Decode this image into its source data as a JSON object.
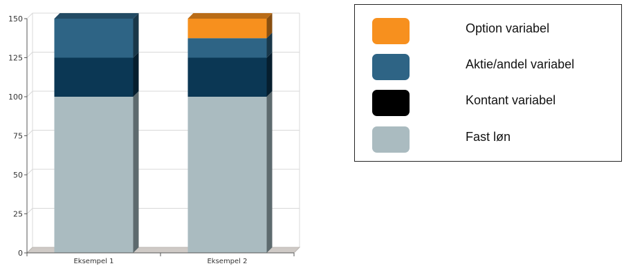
{
  "chart_data": {
    "type": "bar",
    "stacked": true,
    "categories": [
      "Eksempel 1",
      "Eksempel 2"
    ],
    "ylim": [
      0,
      150
    ],
    "yticks": [
      0,
      25,
      50,
      75,
      100,
      125,
      150
    ],
    "grid": true,
    "series": [
      {
        "name": "Fast løn",
        "color": "#aabbc0",
        "values": [
          100,
          100
        ]
      },
      {
        "name": "Kontant variabel",
        "color": "#0b3754",
        "values": [
          25,
          25
        ]
      },
      {
        "name": "Aktie/andel variabel",
        "color": "#2e6485",
        "values": [
          25,
          12.5
        ]
      },
      {
        "name": "Option variabel",
        "color": "#f7901e",
        "values": [
          0,
          12.5
        ]
      }
    ],
    "legend_placement": "right"
  },
  "legend": {
    "items": [
      {
        "label": "Option variabel",
        "color": "#f7901e"
      },
      {
        "label": "Aktie/andel variabel",
        "color": "#2e6485"
      },
      {
        "label": "Kontant variabel",
        "color": "#000000"
      },
      {
        "label": "Fast løn",
        "color": "#aabbc0"
      }
    ]
  }
}
